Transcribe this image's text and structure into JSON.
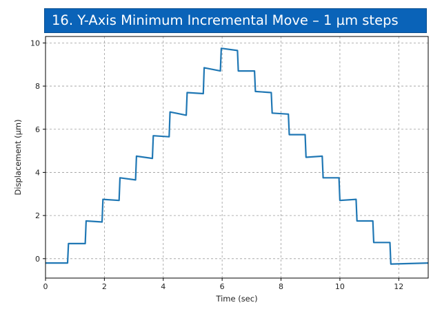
{
  "title_banner": "16.   Y-Axis Minimum Incremental Move – 1 µm steps",
  "colors": {
    "banner": "#0a63b8",
    "series": "#1f77b4",
    "grid": "#9a9a9a"
  },
  "chart_data": {
    "type": "line",
    "title": "16.   Y-Axis Minimum Incremental Move – 1 µm steps",
    "xlabel": "Time (sec)",
    "ylabel": "Displacement (µm)",
    "xlim": [
      0,
      13
    ],
    "ylim": [
      -0.9,
      10.3
    ],
    "xticks": [
      0,
      2,
      4,
      6,
      8,
      10,
      12
    ],
    "yticks": [
      0,
      2,
      4,
      6,
      8,
      10
    ],
    "grid": true,
    "legend": "none",
    "series": [
      {
        "x": [
          0.0,
          0.75,
          0.78,
          1.35,
          1.38,
          1.92,
          1.95,
          2.5,
          2.53,
          3.06,
          3.09,
          3.63,
          3.66,
          4.2,
          4.23,
          4.78,
          4.81,
          5.36,
          5.39,
          5.94,
          5.97,
          6.52,
          6.55,
          7.1,
          7.13,
          7.67,
          7.7,
          8.25,
          8.28,
          8.82,
          8.85,
          9.4,
          9.43,
          9.97,
          10.0,
          10.55,
          10.58,
          11.12,
          11.15,
          11.7,
          11.73,
          13.0
        ],
        "y": [
          -0.2,
          -0.2,
          0.7,
          0.7,
          1.75,
          1.7,
          2.75,
          2.7,
          3.75,
          3.65,
          4.75,
          4.65,
          5.7,
          5.65,
          6.8,
          6.65,
          7.7,
          7.65,
          8.85,
          8.7,
          9.75,
          9.65,
          8.7,
          8.7,
          7.75,
          7.7,
          6.75,
          6.7,
          5.75,
          5.75,
          4.7,
          4.75,
          3.75,
          3.75,
          2.7,
          2.75,
          1.75,
          1.75,
          0.75,
          0.75,
          -0.25,
          -0.2
        ]
      }
    ]
  }
}
